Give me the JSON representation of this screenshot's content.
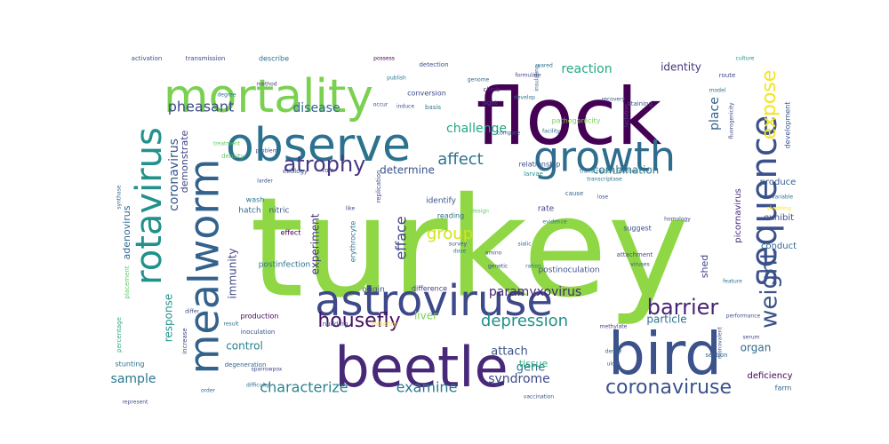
{
  "words": [
    {
      "text": "turkey",
      "color": "#8fd744"
    },
    {
      "text": "flock",
      "color": "#440154"
    },
    {
      "text": "mortality",
      "color": "#7ad151"
    },
    {
      "text": "observe",
      "color": "#2c728e"
    },
    {
      "text": "growth",
      "color": "#2e6d8e"
    },
    {
      "text": "sequence",
      "color": "#3b518b"
    },
    {
      "text": "mealworm",
      "color": "#33628d"
    },
    {
      "text": "rotavirus",
      "color": "#21918c"
    },
    {
      "text": "astroviruse",
      "color": "#3e4989"
    },
    {
      "text": "beetle",
      "color": "#482878"
    },
    {
      "text": "bird",
      "color": "#3b528b"
    },
    {
      "text": "atrophy",
      "color": "#453882"
    },
    {
      "text": "expose",
      "color": "#f3e51e"
    },
    {
      "text": "weight",
      "color": "#3b528b"
    },
    {
      "text": "barrier",
      "color": "#482475"
    },
    {
      "text": "housefly",
      "color": "#471063"
    },
    {
      "text": "depression",
      "color": "#21918c"
    },
    {
      "text": "coronaviruse",
      "color": "#3b528b"
    },
    {
      "text": "characterize",
      "color": "#26828e"
    },
    {
      "text": "examine",
      "color": "#2a788e"
    },
    {
      "text": "pheasant",
      "color": "#3e4a89"
    },
    {
      "text": "disease",
      "color": "#31688e"
    },
    {
      "text": "affect",
      "color": "#2c728e"
    },
    {
      "text": "challenge",
      "color": "#22a785"
    },
    {
      "text": "reaction",
      "color": "#22a884"
    },
    {
      "text": "identity",
      "color": "#46337e"
    },
    {
      "text": "place",
      "color": "#34618d"
    },
    {
      "text": "combination",
      "color": "#2a788e"
    },
    {
      "text": "determine",
      "color": "#3b528b"
    },
    {
      "text": "group",
      "color": "#d2e21b"
    },
    {
      "text": "efface",
      "color": "#414487"
    },
    {
      "text": "coronavirus",
      "color": "#38588c"
    },
    {
      "text": "demonstrate",
      "color": "#414487"
    },
    {
      "text": "adenovirus",
      "color": "#31688e"
    },
    {
      "text": "immunity",
      "color": "#3f4788"
    },
    {
      "text": "experiment",
      "color": "#46337e"
    },
    {
      "text": "response",
      "color": "#21918c"
    },
    {
      "text": "sample",
      "color": "#2a788e"
    },
    {
      "text": "control",
      "color": "#26828e"
    },
    {
      "text": "paramyxovirus",
      "color": "#482878"
    },
    {
      "text": "liver",
      "color": "#7ad151"
    },
    {
      "text": "attach",
      "color": "#3b528b"
    },
    {
      "text": "gene",
      "color": "#2d708e"
    },
    {
      "text": "tissue",
      "color": "#2ab07f"
    },
    {
      "text": "syndrome",
      "color": "#3e4989"
    },
    {
      "text": "shed",
      "color": "#414487"
    },
    {
      "text": "particle",
      "color": "#2c728e"
    },
    {
      "text": "organ",
      "color": "#31688e"
    },
    {
      "text": "picornavirus",
      "color": "#46307e"
    },
    {
      "text": "produce",
      "color": "#355f8d"
    },
    {
      "text": "exhibit",
      "color": "#3e4989"
    },
    {
      "text": "conduct",
      "color": "#31688e"
    },
    {
      "text": "development",
      "color": "#38588c"
    },
    {
      "text": "deficiency",
      "color": "#440154"
    },
    {
      "text": "farm",
      "color": "#33638d"
    },
    {
      "text": "section",
      "color": "#31688e"
    },
    {
      "text": "postinfection",
      "color": "#2c728e"
    },
    {
      "text": "postinoculation",
      "color": "#3b528b"
    },
    {
      "text": "difference",
      "color": "#424086"
    },
    {
      "text": "origin",
      "color": "#3e4989"
    },
    {
      "text": "identify",
      "color": "#39558c"
    },
    {
      "text": "reading",
      "color": "#2e6e8e"
    },
    {
      "text": "rate",
      "color": "#433e85"
    },
    {
      "text": "production",
      "color": "#440154"
    },
    {
      "text": "inoculation",
      "color": "#3b528b"
    },
    {
      "text": "degeneration",
      "color": "#31688e"
    },
    {
      "text": "stunting",
      "color": "#2c728e"
    },
    {
      "text": "percentage",
      "color": "#29af7f"
    },
    {
      "text": "increase",
      "color": "#3e4989"
    },
    {
      "text": "placement",
      "color": "#5ec962"
    },
    {
      "text": "hatch",
      "color": "#31688e"
    },
    {
      "text": "wash",
      "color": "#2a788e"
    },
    {
      "text": "nitric",
      "color": "#3b528b"
    },
    {
      "text": "effect",
      "color": "#440154"
    },
    {
      "text": "erythrocyte",
      "color": "#2c728e"
    },
    {
      "text": "role",
      "color": "#414487"
    },
    {
      "text": "etiology",
      "color": "#3b528b"
    },
    {
      "text": "density",
      "color": "#5ec962"
    },
    {
      "text": "relationship",
      "color": "#3b528b"
    },
    {
      "text": "larvae",
      "color": "#21918c"
    },
    {
      "text": "conversion",
      "color": "#3e4989"
    },
    {
      "text": "basis",
      "color": "#2c728e"
    },
    {
      "text": "detection",
      "color": "#3b528b"
    },
    {
      "text": "describe",
      "color": "#2c728e"
    },
    {
      "text": "transmission",
      "color": "#3e4989"
    },
    {
      "text": "activation",
      "color": "#3b528b"
    },
    {
      "text": "possess",
      "color": "#440154"
    },
    {
      "text": "climb",
      "color": "#482878"
    },
    {
      "text": "sight",
      "color": "#414487"
    },
    {
      "text": "pathogenicity",
      "color": "#7ad151"
    },
    {
      "text": "facility",
      "color": "#31688e"
    },
    {
      "text": "staining",
      "color": "#3b528b"
    },
    {
      "text": "model",
      "color": "#2c728e"
    },
    {
      "text": "culture",
      "color": "#21918c"
    },
    {
      "text": "route",
      "color": "#414487"
    },
    {
      "text": "homology",
      "color": "#3e4989"
    },
    {
      "text": "variable",
      "color": "#2c728e"
    },
    {
      "text": "suggest",
      "color": "#3b528b"
    },
    {
      "text": "evidence",
      "color": "#2a788e"
    },
    {
      "text": "attachment",
      "color": "#3b528b"
    },
    {
      "text": "methylate",
      "color": "#414487"
    },
    {
      "text": "performance",
      "color": "#3b528b"
    },
    {
      "text": "feature",
      "color": "#2c728e"
    },
    {
      "text": "cause",
      "color": "#31688e"
    },
    {
      "text": "replication",
      "color": "#3e4989"
    },
    {
      "text": "design",
      "color": "#5ec962"
    },
    {
      "text": "survey",
      "color": "#3b528b"
    },
    {
      "text": "dose",
      "color": "#2c728e"
    },
    {
      "text": "vaccination",
      "color": "#3b528b"
    },
    {
      "text": "derive",
      "color": "#31688e"
    },
    {
      "text": "sparrowpox",
      "color": "#3e4989"
    },
    {
      "text": "difficulty",
      "color": "#2c728e"
    },
    {
      "text": "represent",
      "color": "#3b528b"
    },
    {
      "text": "synthase",
      "color": "#31688e"
    },
    {
      "text": "method",
      "color": "#3e4989"
    },
    {
      "text": "develop",
      "color": "#2c728e"
    },
    {
      "text": "induce",
      "color": "#3b528b"
    },
    {
      "text": "publish",
      "color": "#2a788e"
    },
    {
      "text": "problem",
      "color": "#3e4989"
    },
    {
      "text": "transcription_reaction",
      "color": "#2c728e"
    },
    {
      "text": "larder",
      "color": "#3b528b"
    },
    {
      "text": "order",
      "color": "#31688e"
    },
    {
      "text": "differ",
      "color": "#3e4989"
    },
    {
      "text": "degree",
      "color": "#2c728e"
    },
    {
      "text": "occur",
      "color": "#3b528b"
    },
    {
      "text": "insulating",
      "color": "#31688e"
    },
    {
      "text": "like",
      "color": "#3e4989"
    },
    {
      "text": "nudding",
      "color": "#3b528b"
    },
    {
      "text": "industry",
      "color": "#fde725"
    },
    {
      "text": "lose",
      "color": "#3b528b"
    },
    {
      "text": "formulate",
      "color": "#414487"
    },
    {
      "text": "genome",
      "color": "#31688e"
    },
    {
      "text": "reared",
      "color": "#2c728e"
    },
    {
      "text": "lactation",
      "color": "#3e4989"
    },
    {
      "text": "compare",
      "color": "#3b528b"
    },
    {
      "text": "treatment",
      "color": "#5ec962"
    },
    {
      "text": "transcriptase",
      "color": "#2c728e"
    },
    {
      "text": "recovery",
      "color": "#3b528b"
    },
    {
      "text": "shedding",
      "color": "#fde725"
    },
    {
      "text": "fluorogenicity",
      "color": "#3e4989"
    },
    {
      "text": "result",
      "color": "#2c728e"
    },
    {
      "text": "ulcer",
      "color": "#31688e"
    },
    {
      "text": "monovalent",
      "color": "#3b528b"
    },
    {
      "text": "serum",
      "color": "#3e4989"
    },
    {
      "text": "ration",
      "color": "#2c728e"
    },
    {
      "text": "amino",
      "color": "#3b528b"
    },
    {
      "text": "sialic",
      "color": "#31688e"
    },
    {
      "text": "genetic",
      "color": "#3e4989"
    },
    {
      "text": "viruses",
      "color": "#3b528b"
    }
  ]
}
